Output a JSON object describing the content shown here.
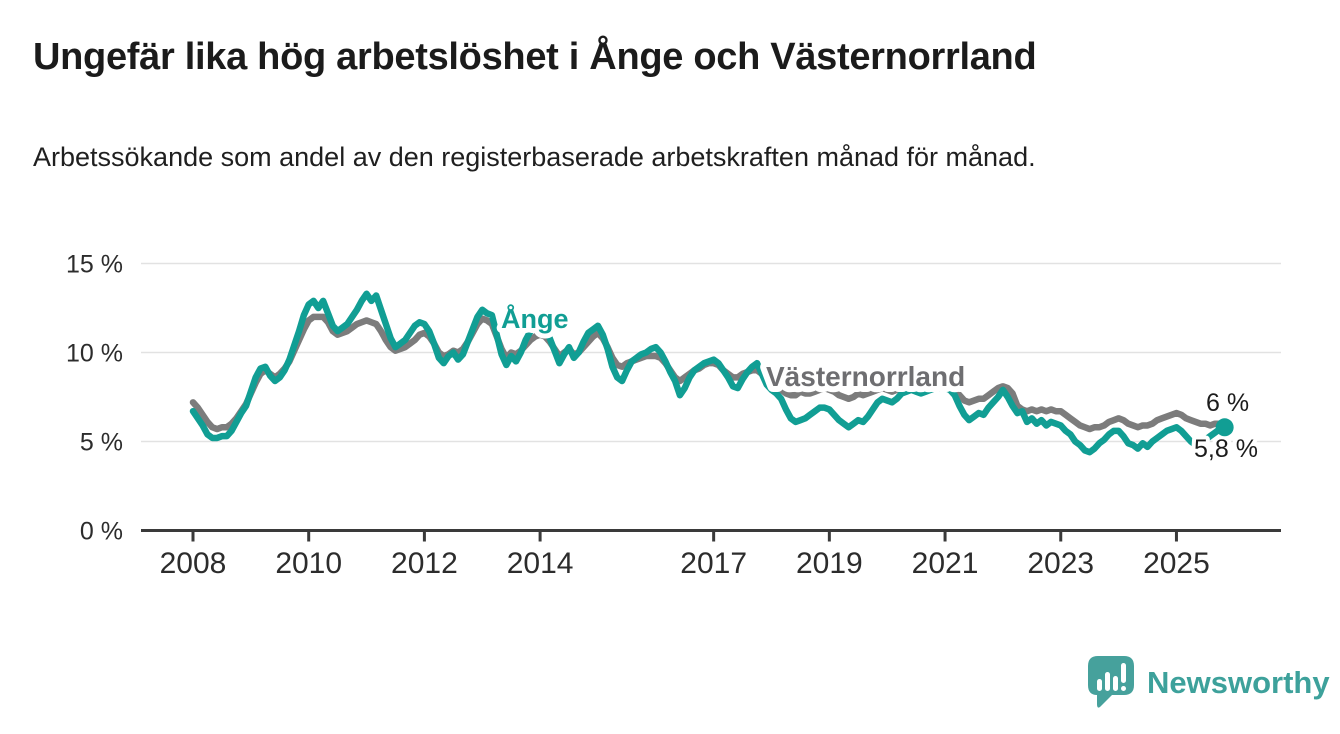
{
  "header": {
    "title": "Ungefär lika hög arbetslöshet i Ånge och Västernorrland",
    "subtitle": "Arbetssökande som andel av den registerbaserade arbetskraften månad för månad."
  },
  "chart_data": {
    "type": "line",
    "title": "Ungefär lika hög arbetslöshet i Ånge och Västernorrland",
    "subtitle": "Arbetssökande som andel av den registerbaserade arbetskraften månad för månad.",
    "x_unit": "month",
    "x_start": "2008-01",
    "x_end": "2025-11",
    "ylim": [
      0,
      15.5
    ],
    "grid": true,
    "legend_position": "inline-labels",
    "y_ticks": [
      {
        "value": 15,
        "label": "15 %"
      },
      {
        "value": 10,
        "label": "10 %"
      },
      {
        "value": 5,
        "label": "5 %"
      },
      {
        "value": 0,
        "label": "0 %"
      }
    ],
    "x_ticks": [
      {
        "year": 2008,
        "label": "2008"
      },
      {
        "year": 2010,
        "label": "2010"
      },
      {
        "year": 2012,
        "label": "2012"
      },
      {
        "year": 2014,
        "label": "2014"
      },
      {
        "year": 2017,
        "label": "2017"
      },
      {
        "year": 2019,
        "label": "2019"
      },
      {
        "year": 2021,
        "label": "2021"
      },
      {
        "year": 2023,
        "label": "2023"
      },
      {
        "year": 2025,
        "label": "2025"
      }
    ],
    "style": {
      "axis_color": "#3a3a3a",
      "grid_color": "#e2e2e2",
      "tick_text_color": "#2c2c2c",
      "value_label_color": "#1c1c1c"
    },
    "series": [
      {
        "id": "ange",
        "name": "Ånge",
        "color": "#119e94",
        "end_label": "5,8 %",
        "end_value": 5.8,
        "end_dot": true,
        "values": [
          6.7,
          6.3,
          5.9,
          5.4,
          5.2,
          5.2,
          5.3,
          5.3,
          5.6,
          6.1,
          6.6,
          7.0,
          7.8,
          8.6,
          9.1,
          9.2,
          8.7,
          8.4,
          8.6,
          9.0,
          9.6,
          10.4,
          11.2,
          12.1,
          12.7,
          12.9,
          12.5,
          12.9,
          12.2,
          11.5,
          11.2,
          11.4,
          11.6,
          12.0,
          12.4,
          12.9,
          13.3,
          12.9,
          13.2,
          12.4,
          11.6,
          10.8,
          10.3,
          10.5,
          10.7,
          11.1,
          11.5,
          11.7,
          11.6,
          11.2,
          10.5,
          9.7,
          9.4,
          9.8,
          10.0,
          9.6,
          9.9,
          10.6,
          11.3,
          12.0,
          12.4,
          12.2,
          12.1,
          11.0,
          9.9,
          9.3,
          9.8,
          9.5,
          10.0,
          10.7,
          11.2,
          11.4,
          11.3,
          11.3,
          10.8,
          10.1,
          9.4,
          9.9,
          10.3,
          9.7,
          10.0,
          10.6,
          11.1,
          11.3,
          11.5,
          11.0,
          10.2,
          9.2,
          8.6,
          8.4,
          9.0,
          9.5,
          9.7,
          9.9,
          10.0,
          10.2,
          10.3,
          10.0,
          9.5,
          8.9,
          8.4,
          7.6,
          8.0,
          8.6,
          9.0,
          9.2,
          9.4,
          9.5,
          9.6,
          9.4,
          9.0,
          8.6,
          8.1,
          8.0,
          8.5,
          8.9,
          9.2,
          9.4,
          8.8,
          8.2,
          7.9,
          7.7,
          7.4,
          6.8,
          6.3,
          6.1,
          6.2,
          6.3,
          6.5,
          6.7,
          6.9,
          6.9,
          6.8,
          6.5,
          6.2,
          6.0,
          5.8,
          6.0,
          6.2,
          6.1,
          6.4,
          6.8,
          7.2,
          7.4,
          7.3,
          7.2,
          7.4,
          7.7,
          7.8,
          7.9,
          7.8,
          7.7,
          7.8,
          7.9,
          8.0,
          8.0,
          8.0,
          7.9,
          7.6,
          7.0,
          6.5,
          6.2,
          6.4,
          6.6,
          6.5,
          6.9,
          7.2,
          7.5,
          7.9,
          7.5,
          7.0,
          6.6,
          6.7,
          6.1,
          6.3,
          6.0,
          6.2,
          5.9,
          6.1,
          6.0,
          5.9,
          5.6,
          5.4,
          5.0,
          4.8,
          4.5,
          4.4,
          4.6,
          4.9,
          5.1,
          5.4,
          5.6,
          5.6,
          5.3,
          4.9,
          4.8,
          4.6,
          4.9,
          4.7,
          5.0,
          5.2,
          5.4,
          5.6,
          5.7,
          5.8,
          5.6,
          5.3,
          5.0,
          4.8,
          4.9,
          5.1,
          5.3,
          5.5,
          5.7,
          5.8
        ]
      },
      {
        "id": "vasternorrland",
        "name": "Västernorrland",
        "color": "#7c7c7c",
        "label_color": "#6e6e71",
        "end_label": "6 %",
        "end_value": 6.0,
        "end_dot": false,
        "values": [
          7.2,
          6.9,
          6.5,
          6.1,
          5.8,
          5.7,
          5.8,
          5.8,
          6.0,
          6.3,
          6.7,
          7.1,
          7.7,
          8.3,
          8.8,
          9.0,
          8.8,
          8.6,
          8.8,
          9.1,
          9.5,
          10.1,
          10.7,
          11.3,
          11.8,
          12.0,
          12.0,
          12.0,
          11.7,
          11.2,
          11.0,
          11.1,
          11.2,
          11.4,
          11.6,
          11.7,
          11.8,
          11.7,
          11.6,
          11.2,
          10.7,
          10.3,
          10.1,
          10.2,
          10.3,
          10.5,
          10.7,
          11.0,
          11.1,
          10.9,
          10.5,
          10.0,
          9.8,
          9.9,
          10.1,
          10.0,
          10.2,
          10.6,
          11.1,
          11.6,
          11.9,
          11.8,
          11.6,
          10.9,
          10.2,
          9.7,
          10.0,
          9.9,
          10.1,
          10.4,
          10.7,
          10.9,
          11.0,
          10.9,
          10.6,
          10.2,
          9.8,
          10.0,
          10.2,
          9.9,
          10.0,
          10.3,
          10.6,
          10.9,
          11.1,
          10.8,
          10.3,
          9.7,
          9.3,
          9.2,
          9.4,
          9.5,
          9.6,
          9.7,
          9.8,
          9.8,
          9.8,
          9.7,
          9.4,
          9.0,
          8.6,
          8.4,
          8.6,
          8.8,
          9.0,
          9.1,
          9.3,
          9.4,
          9.4,
          9.3,
          9.0,
          8.8,
          8.6,
          8.6,
          8.8,
          8.9,
          9.0,
          9.0,
          8.8,
          8.5,
          8.2,
          8.0,
          7.9,
          7.7,
          7.6,
          7.6,
          7.8,
          7.7,
          7.7,
          7.8,
          7.9,
          8.0,
          7.9,
          7.8,
          7.6,
          7.5,
          7.4,
          7.5,
          7.7,
          7.6,
          7.7,
          7.8,
          7.9,
          8.0,
          7.9,
          7.8,
          7.9,
          8.1,
          8.2,
          8.3,
          8.3,
          8.2,
          8.2,
          8.3,
          8.3,
          8.3,
          8.2,
          8.1,
          7.9,
          7.6,
          7.3,
          7.2,
          7.3,
          7.4,
          7.4,
          7.6,
          7.8,
          8.0,
          8.1,
          8.0,
          7.7,
          7.0,
          6.8,
          6.7,
          6.8,
          6.7,
          6.8,
          6.7,
          6.8,
          6.7,
          6.7,
          6.5,
          6.3,
          6.1,
          5.9,
          5.8,
          5.7,
          5.8,
          5.8,
          5.9,
          6.1,
          6.2,
          6.3,
          6.2,
          6.0,
          5.9,
          5.8,
          5.9,
          5.9,
          6.0,
          6.2,
          6.3,
          6.4,
          6.5,
          6.6,
          6.5,
          6.3,
          6.2,
          6.1,
          6.0,
          6.0,
          5.9,
          6.0,
          6.0,
          6.0
        ]
      }
    ]
  },
  "footer": {
    "brand": "Newsworthy",
    "brand_color": "#3da19b",
    "logo_icon": "newsworthy-speech-bubble-bar-chart-icon"
  }
}
